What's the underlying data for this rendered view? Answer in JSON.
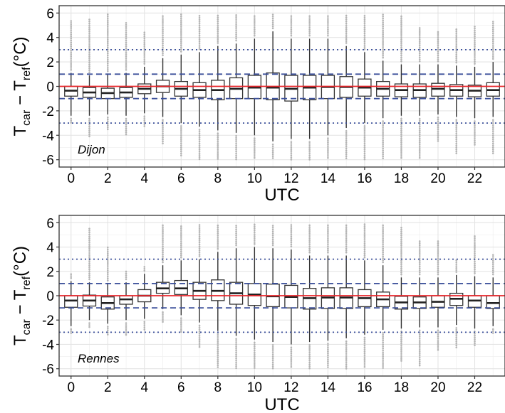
{
  "chart_data": [
    {
      "type": "box",
      "label": "Dijon",
      "xlabel": "UTC",
      "ylabel": {
        "main": "T",
        "sub1": "car",
        "mid": " − T",
        "sub2": "ref",
        "tail": "(°C)"
      },
      "ylim": [
        -6.6,
        6.6
      ],
      "yticks": [
        -6,
        -4,
        -2,
        0,
        2,
        4,
        6
      ],
      "xticks": [
        0,
        2,
        4,
        6,
        8,
        10,
        12,
        14,
        16,
        18,
        20,
        22
      ],
      "grid": true,
      "reference_lines": [
        {
          "y": 0,
          "style": "solid",
          "color": "#e8262b"
        },
        {
          "y": 1,
          "style": "dashed",
          "color": "#3a4f9a"
        },
        {
          "y": -1,
          "style": "dashed",
          "color": "#3a4f9a"
        },
        {
          "y": 3,
          "style": "dotted",
          "color": "#3a4f9a"
        },
        {
          "y": -3,
          "style": "dotted",
          "color": "#3a4f9a"
        }
      ],
      "boxes": [
        {
          "hour": 0,
          "q1": -0.8,
          "median": -0.35,
          "q3": 0.0,
          "whisker_low": -2.4,
          "whisker_high": 1.1,
          "out_low": -3.1,
          "out_high": 5.4
        },
        {
          "hour": 1,
          "q1": -0.9,
          "median": -0.5,
          "q3": -0.1,
          "whisker_low": -2.4,
          "whisker_high": 0.9,
          "out_low": -4.2,
          "out_high": 5.5
        },
        {
          "hour": 2,
          "q1": -1.0,
          "median": -0.55,
          "q3": -0.15,
          "whisker_low": -2.3,
          "whisker_high": 1.0,
          "out_low": -3.6,
          "out_high": 5.9
        },
        {
          "hour": 3,
          "q1": -0.9,
          "median": -0.5,
          "q3": -0.1,
          "whisker_low": -2.4,
          "whisker_high": 1.1,
          "out_low": -4.0,
          "out_high": 5.3
        },
        {
          "hour": 4,
          "q1": -0.6,
          "median": -0.2,
          "q3": 0.2,
          "whisker_low": -2.2,
          "whisker_high": 1.6,
          "out_low": -3.3,
          "out_high": 4.5
        },
        {
          "hour": 5,
          "q1": -0.5,
          "median": 0.0,
          "q3": 0.5,
          "whisker_low": -2.5,
          "whisker_high": 2.3,
          "out_low": -4.7,
          "out_high": 5.8
        },
        {
          "hour": 6,
          "q1": -0.8,
          "median": -0.2,
          "q3": 0.4,
          "whisker_low": -3.0,
          "whisker_high": 2.6,
          "out_low": -5.8,
          "out_high": 5.9
        },
        {
          "hour": 7,
          "q1": -0.9,
          "median": -0.3,
          "q3": 0.3,
          "whisker_low": -3.3,
          "whisker_high": 2.8,
          "out_low": -6.0,
          "out_high": 5.9
        },
        {
          "hour": 8,
          "q1": -1.1,
          "median": -0.3,
          "q3": 0.5,
          "whisker_low": -3.6,
          "whisker_high": 3.3,
          "out_low": -6.0,
          "out_high": 5.9
        },
        {
          "hour": 9,
          "q1": -1.0,
          "median": -0.2,
          "q3": 0.7,
          "whisker_low": -3.8,
          "whisker_high": 3.5,
          "out_low": -6.0,
          "out_high": 5.9
        },
        {
          "hour": 10,
          "q1": -1.0,
          "median": -0.1,
          "q3": 0.9,
          "whisker_low": -4.0,
          "whisker_high": 3.9,
          "out_low": -6.0,
          "out_high": 5.9
        },
        {
          "hour": 11,
          "q1": -1.1,
          "median": -0.1,
          "q3": 1.1,
          "whisker_low": -4.5,
          "whisker_high": 4.5,
          "out_low": -6.0,
          "out_high": 5.9
        },
        {
          "hour": 12,
          "q1": -1.2,
          "median": -0.2,
          "q3": 0.9,
          "whisker_low": -4.3,
          "whisker_high": 3.9,
          "out_low": -6.0,
          "out_high": 5.9
        },
        {
          "hour": 13,
          "q1": -1.1,
          "median": -0.1,
          "q3": 0.9,
          "whisker_low": -4.3,
          "whisker_high": 3.9,
          "out_low": -6.0,
          "out_high": 5.9
        },
        {
          "hour": 14,
          "q1": -1.0,
          "median": -0.05,
          "q3": 0.9,
          "whisker_low": -4.0,
          "whisker_high": 3.9,
          "out_low": -6.0,
          "out_high": 5.9
        },
        {
          "hour": 15,
          "q1": -0.9,
          "median": -0.05,
          "q3": 0.8,
          "whisker_low": -3.4,
          "whisker_high": 3.3,
          "out_low": -6.0,
          "out_high": 5.9
        },
        {
          "hour": 16,
          "q1": -0.8,
          "median": -0.1,
          "q3": 0.6,
          "whisker_low": -3.0,
          "whisker_high": 2.8,
          "out_low": -6.0,
          "out_high": 5.9
        },
        {
          "hour": 17,
          "q1": -0.8,
          "median": -0.2,
          "q3": 0.4,
          "whisker_low": -2.6,
          "whisker_high": 2.1,
          "out_low": -6.0,
          "out_high": 5.9
        },
        {
          "hour": 18,
          "q1": -0.85,
          "median": -0.3,
          "q3": 0.2,
          "whisker_low": -2.4,
          "whisker_high": 1.8,
          "out_low": -6.0,
          "out_high": 5.8
        },
        {
          "hour": 19,
          "q1": -0.9,
          "median": -0.3,
          "q3": 0.2,
          "whisker_low": -2.4,
          "whisker_high": 1.8,
          "out_low": -5.9,
          "out_high": 4.8
        },
        {
          "hour": 20,
          "q1": -0.8,
          "median": -0.2,
          "q3": 0.25,
          "whisker_low": -2.3,
          "whisker_high": 1.8,
          "out_low": -4.5,
          "out_high": 4.5
        },
        {
          "hour": 21,
          "q1": -0.8,
          "median": -0.3,
          "q3": 0.15,
          "whisker_low": -2.5,
          "whisker_high": 1.7,
          "out_low": -5.5,
          "out_high": 4.8
        },
        {
          "hour": 22,
          "q1": -0.85,
          "median": -0.35,
          "q3": 0.1,
          "whisker_low": -2.6,
          "whisker_high": 1.6,
          "out_low": -4.8,
          "out_high": 5.0
        },
        {
          "hour": 23,
          "q1": -0.8,
          "median": -0.3,
          "q3": 0.3,
          "whisker_low": -2.5,
          "whisker_high": 2.0,
          "out_low": -5.5,
          "out_high": 5.4
        }
      ]
    },
    {
      "type": "box",
      "label": "Rennes",
      "xlabel": "UTC",
      "ylabel": {
        "main": "T",
        "sub1": "car",
        "mid": " − T",
        "sub2": "ref",
        "tail": "(°C)"
      },
      "ylim": [
        -6.6,
        6.6
      ],
      "yticks": [
        -6,
        -4,
        -2,
        0,
        2,
        4,
        6
      ],
      "xticks": [
        0,
        2,
        4,
        6,
        8,
        10,
        12,
        14,
        16,
        18,
        20,
        22
      ],
      "grid": true,
      "reference_lines": [
        {
          "y": 0,
          "style": "solid",
          "color": "#e8262b"
        },
        {
          "y": 1,
          "style": "dashed",
          "color": "#3a4f9a"
        },
        {
          "y": -1,
          "style": "dashed",
          "color": "#3a4f9a"
        },
        {
          "y": 3,
          "style": "dotted",
          "color": "#3a4f9a"
        },
        {
          "y": -3,
          "style": "dotted",
          "color": "#3a4f9a"
        }
      ],
      "boxes": [
        {
          "hour": 0,
          "q1": -0.95,
          "median": -0.4,
          "q3": 0.0,
          "whisker_low": -2.5,
          "whisker_high": 1.2,
          "out_low": -3.2,
          "out_high": 1.8
        },
        {
          "hour": 1,
          "q1": -0.85,
          "median": -0.4,
          "q3": 0.05,
          "whisker_low": -2.0,
          "whisker_high": 1.1,
          "out_low": -2.6,
          "out_high": 5.6
        },
        {
          "hour": 2,
          "q1": -1.1,
          "median": -0.6,
          "q3": -0.1,
          "whisker_low": -2.3,
          "whisker_high": 1.0,
          "out_low": -3.3,
          "out_high": 4.0
        },
        {
          "hour": 3,
          "q1": -0.7,
          "median": -0.3,
          "q3": 0.0,
          "whisker_low": -2.0,
          "whisker_high": 1.1,
          "out_low": -3.3,
          "out_high": 2.0
        },
        {
          "hour": 4,
          "q1": -0.5,
          "median": 0.0,
          "q3": 0.5,
          "whisker_low": -1.9,
          "whisker_high": 1.8,
          "out_low": -2.8,
          "out_high": 2.5
        },
        {
          "hour": 5,
          "q1": 0.2,
          "median": 0.6,
          "q3": 1.1,
          "whisker_low": -1.1,
          "whisker_high": 2.5,
          "out_low": -2.3,
          "out_high": 5.8
        },
        {
          "hour": 6,
          "q1": 0.1,
          "median": 0.6,
          "q3": 1.25,
          "whisker_low": -1.6,
          "whisker_high": 2.9,
          "out_low": -3.1,
          "out_high": 5.8
        },
        {
          "hour": 7,
          "q1": -0.3,
          "median": 0.4,
          "q3": 1.1,
          "whisker_low": -2.2,
          "whisker_high": 3.0,
          "out_low": -4.3,
          "out_high": 5.9
        },
        {
          "hour": 8,
          "q1": -0.4,
          "median": 0.4,
          "q3": 1.3,
          "whisker_low": -2.9,
          "whisker_high": 3.6,
          "out_low": -6.0,
          "out_high": 5.9
        },
        {
          "hour": 9,
          "q1": -0.7,
          "median": 0.2,
          "q3": 1.1,
          "whisker_low": -3.3,
          "whisker_high": 3.9,
          "out_low": -6.0,
          "out_high": 5.9
        },
        {
          "hour": 10,
          "q1": -0.8,
          "median": 0.1,
          "q3": 1.0,
          "whisker_low": -3.6,
          "whisker_high": 4.0,
          "out_low": -6.0,
          "out_high": 5.9
        },
        {
          "hour": 11,
          "q1": -0.9,
          "median": -0.05,
          "q3": 0.95,
          "whisker_low": -3.8,
          "whisker_high": 3.9,
          "out_low": -6.0,
          "out_high": 5.9
        },
        {
          "hour": 12,
          "q1": -1.0,
          "median": -0.1,
          "q3": 0.85,
          "whisker_low": -4.0,
          "whisker_high": 3.8,
          "out_low": -6.0,
          "out_high": 5.9
        },
        {
          "hour": 13,
          "q1": -1.1,
          "median": -0.2,
          "q3": 0.6,
          "whisker_low": -3.8,
          "whisker_high": 3.3,
          "out_low": -6.0,
          "out_high": 5.9
        },
        {
          "hour": 14,
          "q1": -1.05,
          "median": -0.15,
          "q3": 0.65,
          "whisker_low": -3.7,
          "whisker_high": 3.3,
          "out_low": -6.0,
          "out_high": 5.9
        },
        {
          "hour": 15,
          "q1": -1.05,
          "median": -0.15,
          "q3": 0.65,
          "whisker_low": -3.5,
          "whisker_high": 3.3,
          "out_low": -6.0,
          "out_high": 5.9
        },
        {
          "hour": 16,
          "q1": -0.9,
          "median": -0.2,
          "q3": 0.5,
          "whisker_low": -3.2,
          "whisker_high": 2.9,
          "out_low": -6.0,
          "out_high": 5.9
        },
        {
          "hour": 17,
          "q1": -0.9,
          "median": -0.3,
          "q3": 0.3,
          "whisker_low": -2.8,
          "whisker_high": 2.5,
          "out_low": -6.0,
          "out_high": 5.9
        },
        {
          "hour": 18,
          "q1": -1.1,
          "median": -0.55,
          "q3": -0.05,
          "whisker_low": -2.7,
          "whisker_high": 1.5,
          "out_low": -5.5,
          "out_high": 5.6
        },
        {
          "hour": 19,
          "q1": -1.05,
          "median": -0.55,
          "q3": -0.1,
          "whisker_low": -2.6,
          "whisker_high": 1.5,
          "out_low": -5.8,
          "out_high": 4.5
        },
        {
          "hour": 20,
          "q1": -0.95,
          "median": -0.5,
          "q3": 0.0,
          "whisker_low": -2.6,
          "whisker_high": 1.5,
          "out_low": -4.5,
          "out_high": 4.5
        },
        {
          "hour": 21,
          "q1": -0.8,
          "median": -0.25,
          "q3": 0.2,
          "whisker_low": -2.4,
          "whisker_high": 1.7,
          "out_low": -4.3,
          "out_high": 3.0
        },
        {
          "hour": 22,
          "q1": -0.95,
          "median": -0.4,
          "q3": 0.0,
          "whisker_low": -2.7,
          "whisker_high": 1.6,
          "out_low": -4.2,
          "out_high": 5.0
        },
        {
          "hour": 23,
          "q1": -1.05,
          "median": -0.6,
          "q3": 0.0,
          "whisker_low": -2.5,
          "whisker_high": 1.5,
          "out_low": -3.2,
          "out_high": 3.5
        }
      ]
    }
  ]
}
